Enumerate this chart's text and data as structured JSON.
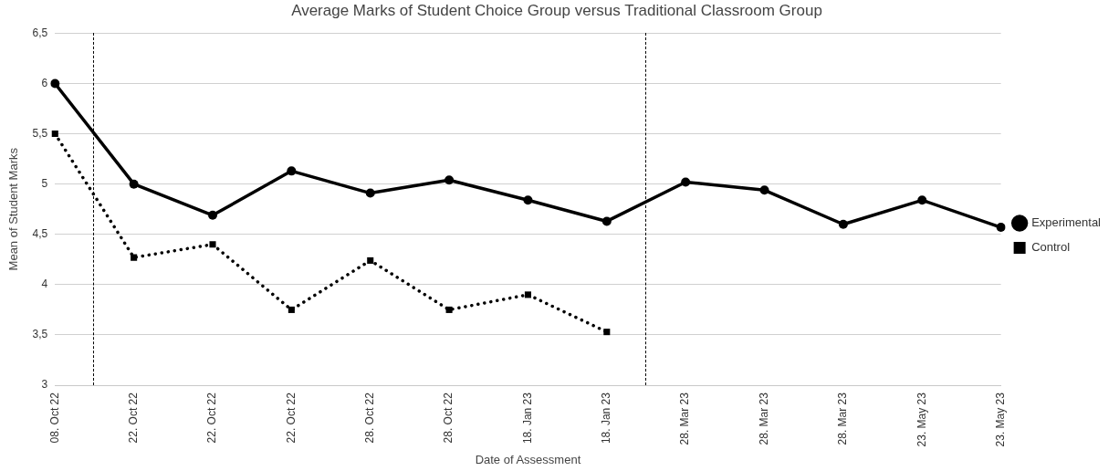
{
  "chart_data": {
    "type": "line",
    "title": "Average Marks of Student Choice Group versus Traditional Classroom Group",
    "xlabel": "Date of Assessment",
    "ylabel": "Mean of Student Marks",
    "categories": [
      "08. Oct 22",
      "22. Oct 22",
      "22. Oct 22",
      "22. Oct 22",
      "28. Oct 22",
      "28. Oct 22",
      "18. Jan 23",
      "18. Jan 23",
      "28. Mar 23",
      "28. Mar 23",
      "28. Mar 23",
      "23. May 23",
      "23. May 23"
    ],
    "series": [
      {
        "name": "Experimental",
        "color": "#000000",
        "marker": "circle",
        "line_style": "solid",
        "values": [
          6.0,
          5.0,
          4.69,
          5.13,
          4.91,
          5.04,
          4.84,
          4.63,
          5.02,
          4.94,
          4.6,
          4.84,
          4.57
        ]
      },
      {
        "name": "Control",
        "color": "#000000",
        "marker": "square",
        "line_style": "dotted",
        "values": [
          5.5,
          4.27,
          4.4,
          3.75,
          4.24,
          3.75,
          3.9,
          3.53,
          null,
          null,
          null,
          null,
          null
        ]
      }
    ],
    "ylim": [
      3,
      6.5
    ],
    "yticks": [
      3,
      {
        "value": 3.5,
        "label": "3,5"
      },
      4,
      {
        "value": 4.5,
        "label": "4,5"
      },
      5,
      {
        "value": 5.5,
        "label": "5,5"
      },
      6,
      {
        "value": 6.5,
        "label": "6,5"
      }
    ],
    "grid": "y",
    "legend": "right"
  }
}
